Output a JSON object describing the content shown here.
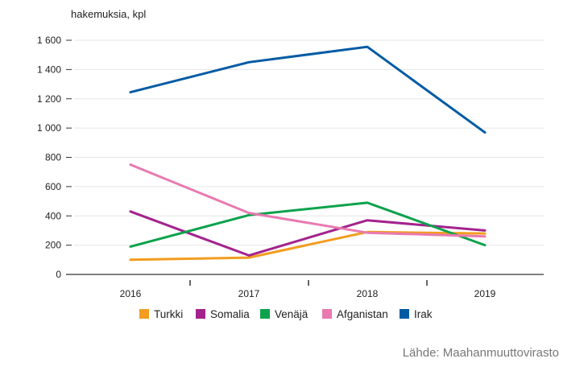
{
  "chart_data": {
    "type": "line",
    "ylabel": "hakemuksia, kpl",
    "ylim": [
      0,
      1600
    ],
    "yticks": [
      0,
      200,
      400,
      600,
      800,
      1000,
      1200,
      1400,
      1600
    ],
    "ytick_labels": [
      "0",
      "200",
      "400",
      "600",
      "800",
      "1 000",
      "1 200",
      "1 400",
      "1 600"
    ],
    "categories": [
      "2016",
      "2017",
      "2018",
      "2019"
    ],
    "grid": true,
    "legend_position": "bottom",
    "series": [
      {
        "name": "Turkki",
        "color": "#f39c1f",
        "values": [
          100,
          115,
          290,
          280
        ]
      },
      {
        "name": "Somalia",
        "color": "#a3238e",
        "values": [
          430,
          130,
          370,
          300
        ]
      },
      {
        "name": "Venäjä",
        "color": "#0ca24c",
        "values": [
          190,
          405,
          490,
          200
        ]
      },
      {
        "name": "Afganistan",
        "color": "#e87ab0",
        "values": [
          750,
          420,
          285,
          260
        ]
      },
      {
        "name": "Irak",
        "color": "#005ba4",
        "values": [
          1245,
          1450,
          1555,
          970
        ]
      }
    ]
  },
  "source": "Lähde: Maahanmuuttovirasto"
}
